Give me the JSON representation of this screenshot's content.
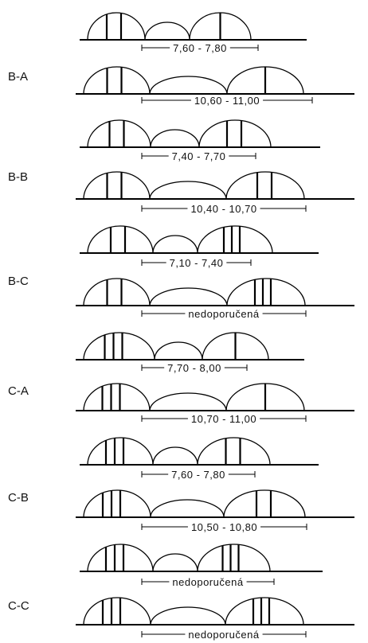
{
  "groups": [
    {
      "label": "B-A",
      "rows": [
        {
          "dimension": "7,60 - 7,80",
          "left_bars": 2,
          "right_bars": 1
        },
        {
          "dimension": "10,60 - 11,00",
          "left_bars": 2,
          "right_bars": 1
        }
      ]
    },
    {
      "label": "B-B",
      "rows": [
        {
          "dimension": "7,40 - 7,70",
          "left_bars": 2,
          "right_bars": 2
        },
        {
          "dimension": "10,40 - 10,70",
          "left_bars": 2,
          "right_bars": 2
        }
      ]
    },
    {
      "label": "B-C",
      "rows": [
        {
          "dimension": "7,10 - 7,40",
          "left_bars": 2,
          "right_bars": 3
        },
        {
          "dimension": "nedoporučená",
          "left_bars": 2,
          "right_bars": 3
        }
      ]
    },
    {
      "label": "C-A",
      "rows": [
        {
          "dimension": "7,70 - 8,00",
          "left_bars": 3,
          "right_bars": 1
        },
        {
          "dimension": "10,70 - 11,00",
          "left_bars": 3,
          "right_bars": 1
        }
      ]
    },
    {
      "label": "C-B",
      "rows": [
        {
          "dimension": "7,60 - 7,80",
          "left_bars": 3,
          "right_bars": 2
        },
        {
          "dimension": "10,50 - 10,80",
          "left_bars": 3,
          "right_bars": 2
        }
      ]
    },
    {
      "label": "C-C",
      "rows": [
        {
          "dimension": "nedoporučená",
          "left_bars": 3,
          "right_bars": 3
        },
        {
          "dimension": "nedoporučená",
          "left_bars": 3,
          "right_bars": 3
        }
      ]
    }
  ]
}
